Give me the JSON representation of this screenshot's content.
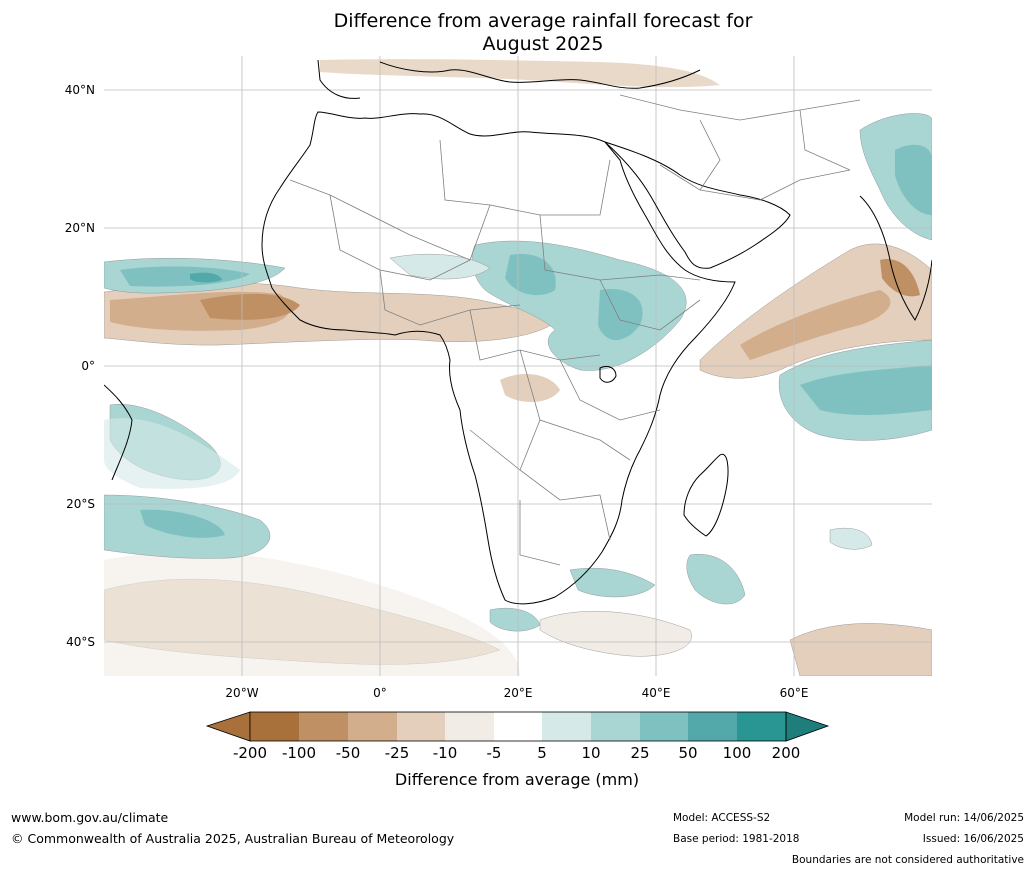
{
  "title_line1": "Difference from average rainfall forecast for",
  "title_line2": "August 2025",
  "lat_labels": [
    "40°N",
    "20°N",
    "0°",
    "20°S",
    "40°S"
  ],
  "lon_labels": [
    "20°W",
    "0°",
    "20°E",
    "40°E",
    "60°E"
  ],
  "legend": {
    "ticks": [
      "-200",
      "-100",
      "-50",
      "-25",
      "-10",
      "-5",
      "5",
      "10",
      "25",
      "50",
      "100",
      "200"
    ],
    "colors": [
      "#a8703a",
      "#bf9063",
      "#d2ae8c",
      "#e3cfbc",
      "#f2ece6",
      "#ffffff",
      "#d4e9e8",
      "#a9d5d3",
      "#7fc1c0",
      "#53a9a9",
      "#2a9693",
      "#1f7e7b"
    ],
    "title": "Difference from average (mm)"
  },
  "footer": {
    "url": "www.bom.gov.au/climate",
    "copyright": "© Commonwealth of Australia 2025, Australian Bureau of Meteorology",
    "model": "Model: ACCESS-S2",
    "base_period": "Base period: 1981-2018",
    "model_run": "Model run: 14/06/2025",
    "issued": "Issued: 16/06/2025",
    "disclaimer": "Boundaries are not considered authoritative"
  }
}
